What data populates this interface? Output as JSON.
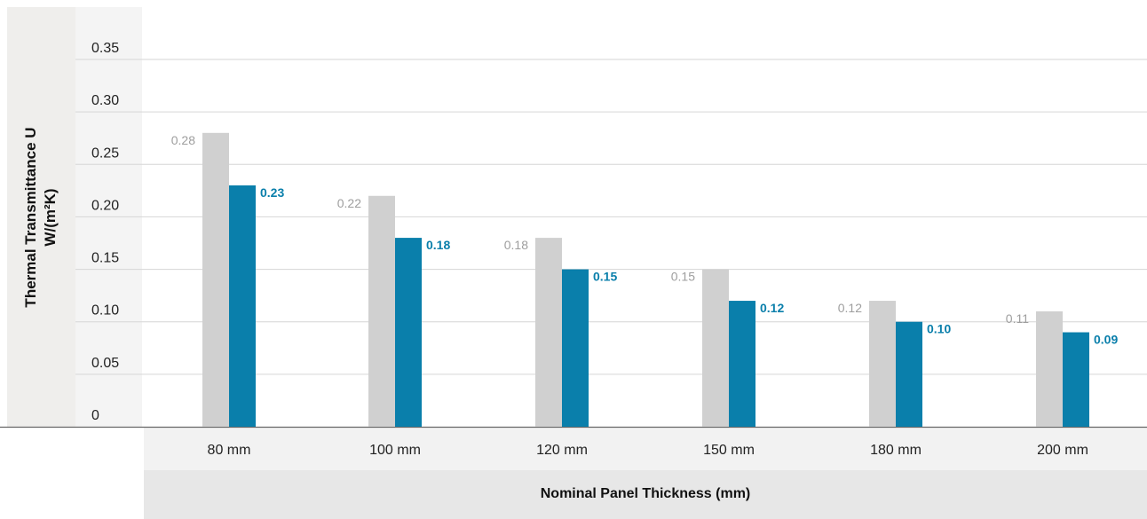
{
  "chart_data": {
    "type": "bar",
    "title": "",
    "ylabel_line1": "Thermal Transmittance U",
    "ylabel_line2": "W/(m²K)",
    "xlabel": "Nominal Panel Thickness (mm)",
    "categories": [
      "80 mm",
      "100 mm",
      "120 mm",
      "150 mm",
      "180 mm",
      "200 mm"
    ],
    "yticks": [
      "0",
      "0.05",
      "0.10",
      "0.15",
      "0.20",
      "0.25",
      "0.30",
      "0.35"
    ],
    "ylim": [
      0,
      0.35
    ],
    "grid": true,
    "series": [
      {
        "values": [
          0.28,
          0.22,
          0.18,
          0.15,
          0.12,
          0.11
        ],
        "labels": [
          "0.28",
          "0.22",
          "0.18",
          "0.15",
          "0.12",
          "0.11"
        ],
        "color": "#d0d0d0",
        "label_color": "#9e9e9e"
      },
      {
        "values": [
          0.23,
          0.18,
          0.15,
          0.12,
          0.1,
          0.09
        ],
        "labels": [
          "0.23",
          "0.18",
          "0.15",
          "0.12",
          "0.10",
          "0.09"
        ],
        "color": "#0a7fab",
        "label_color": "#0a7fab"
      }
    ]
  }
}
